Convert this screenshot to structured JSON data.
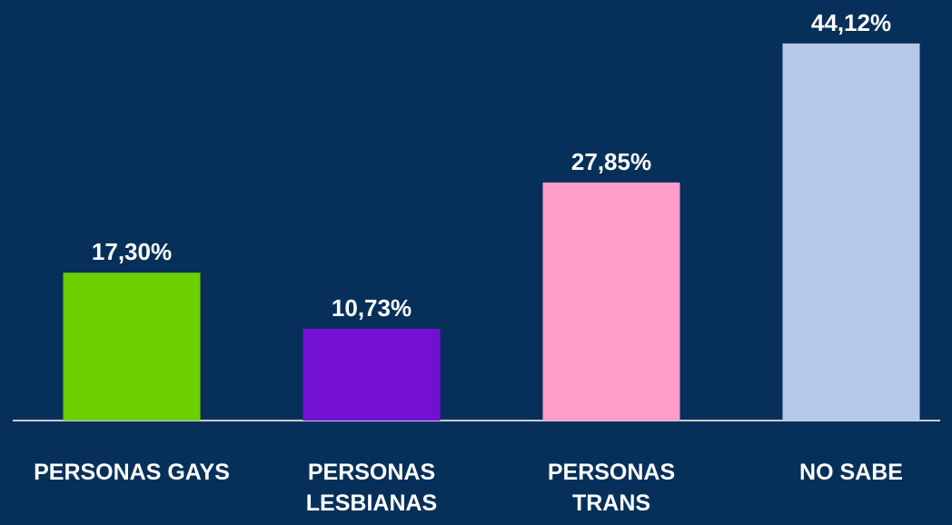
{
  "chart_data": {
    "type": "bar",
    "categories": [
      "PERSONAS GAYS",
      "PERSONAS LESBIANAS",
      "PERSONAS TRANS",
      "NO SABE"
    ],
    "values": [
      17.3,
      10.73,
      27.85,
      44.12
    ],
    "value_labels": [
      "17,30%",
      "10,73%",
      "27,85%",
      "44,12%"
    ],
    "colors": [
      "#6ccf00",
      "#7410d2",
      "#ff9cc8",
      "#b6c8e8"
    ]
  }
}
